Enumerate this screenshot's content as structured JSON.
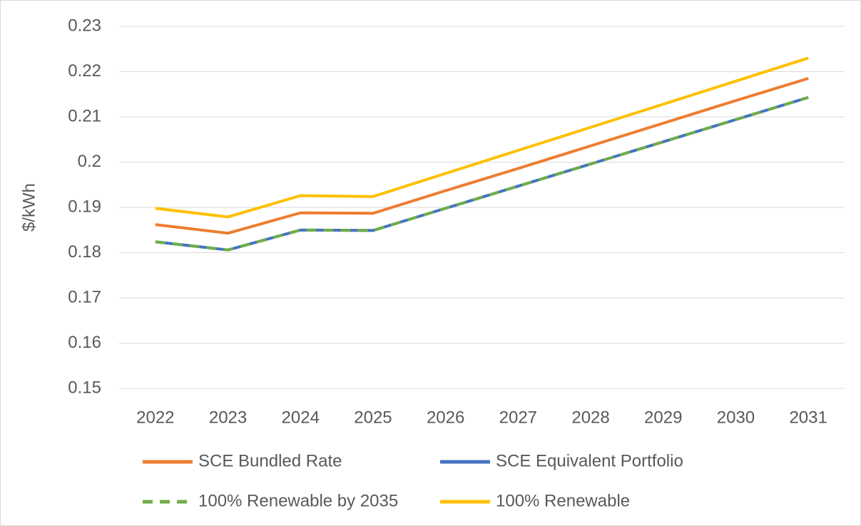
{
  "chart_data": {
    "type": "line",
    "y_label": "$/kWh",
    "categories": [
      "2022",
      "2023",
      "2024",
      "2025",
      "2026",
      "2027",
      "2028",
      "2029",
      "2030",
      "2031"
    ],
    "series": [
      {
        "name": "SCE Bundled Rate",
        "color": "#ed7d31",
        "values": [
          0.1862,
          0.1843,
          0.1888,
          0.1887,
          0.1937,
          0.1986,
          0.2036,
          0.2086,
          0.2136,
          0.2185
        ]
      },
      {
        "name": "SCE Equivalent Portfolio",
        "color": "#4472c4",
        "values": [
          0.1824,
          0.1806,
          0.185,
          0.1849,
          0.1898,
          0.1947,
          0.1996,
          0.2045,
          0.2094,
          0.2143
        ]
      },
      {
        "name": "100% Renewable by 2035",
        "color": "#70ad47",
        "dashed": true,
        "values": [
          0.1824,
          0.1806,
          0.185,
          0.1849,
          0.1898,
          0.1947,
          0.1996,
          0.2045,
          0.2094,
          0.2143
        ]
      },
      {
        "name": "100% Renewable",
        "color": "#ffc000",
        "values": [
          0.1898,
          0.1879,
          0.1926,
          0.1924,
          0.1975,
          0.2026,
          0.2077,
          0.2128,
          0.2179,
          0.223
        ]
      }
    ],
    "ylim": [
      0.15,
      0.23
    ],
    "yticks": [
      0.15,
      0.16,
      0.17,
      0.18,
      0.19,
      0.2,
      0.21,
      0.22,
      0.23
    ],
    "grid": true
  }
}
